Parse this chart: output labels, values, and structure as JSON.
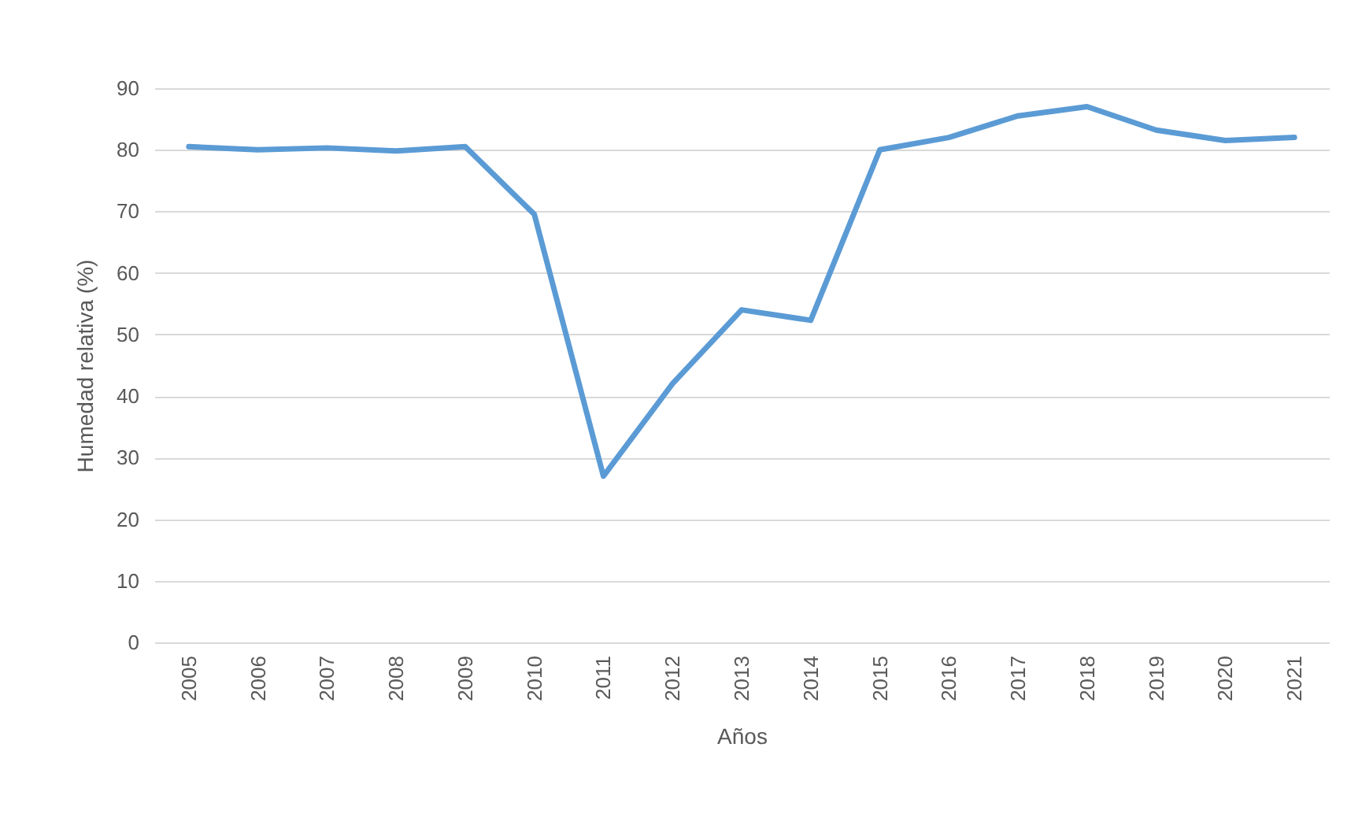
{
  "chart_data": {
    "type": "line",
    "xlabel": "Años",
    "ylabel": "Humedad relativa (%)",
    "categories": [
      "2005",
      "2006",
      "2007",
      "2008",
      "2009",
      "2010",
      "2011",
      "2012",
      "2013",
      "2014",
      "2015",
      "2016",
      "2017",
      "2018",
      "2019",
      "2020",
      "2021"
    ],
    "series": [
      {
        "color": "#5b9bd5",
        "values": [
          80.5,
          80,
          80.3,
          79.8,
          80.5,
          69.5,
          27,
          42,
          54,
          52.3,
          80,
          82,
          85.5,
          87,
          83.2,
          81.5,
          82
        ]
      }
    ],
    "ylim": [
      0,
      90
    ],
    "yticks": [
      0,
      10,
      20,
      30,
      40,
      50,
      60,
      70,
      80,
      90
    ],
    "grid": "y",
    "marker": "none",
    "line_style": "solid"
  }
}
